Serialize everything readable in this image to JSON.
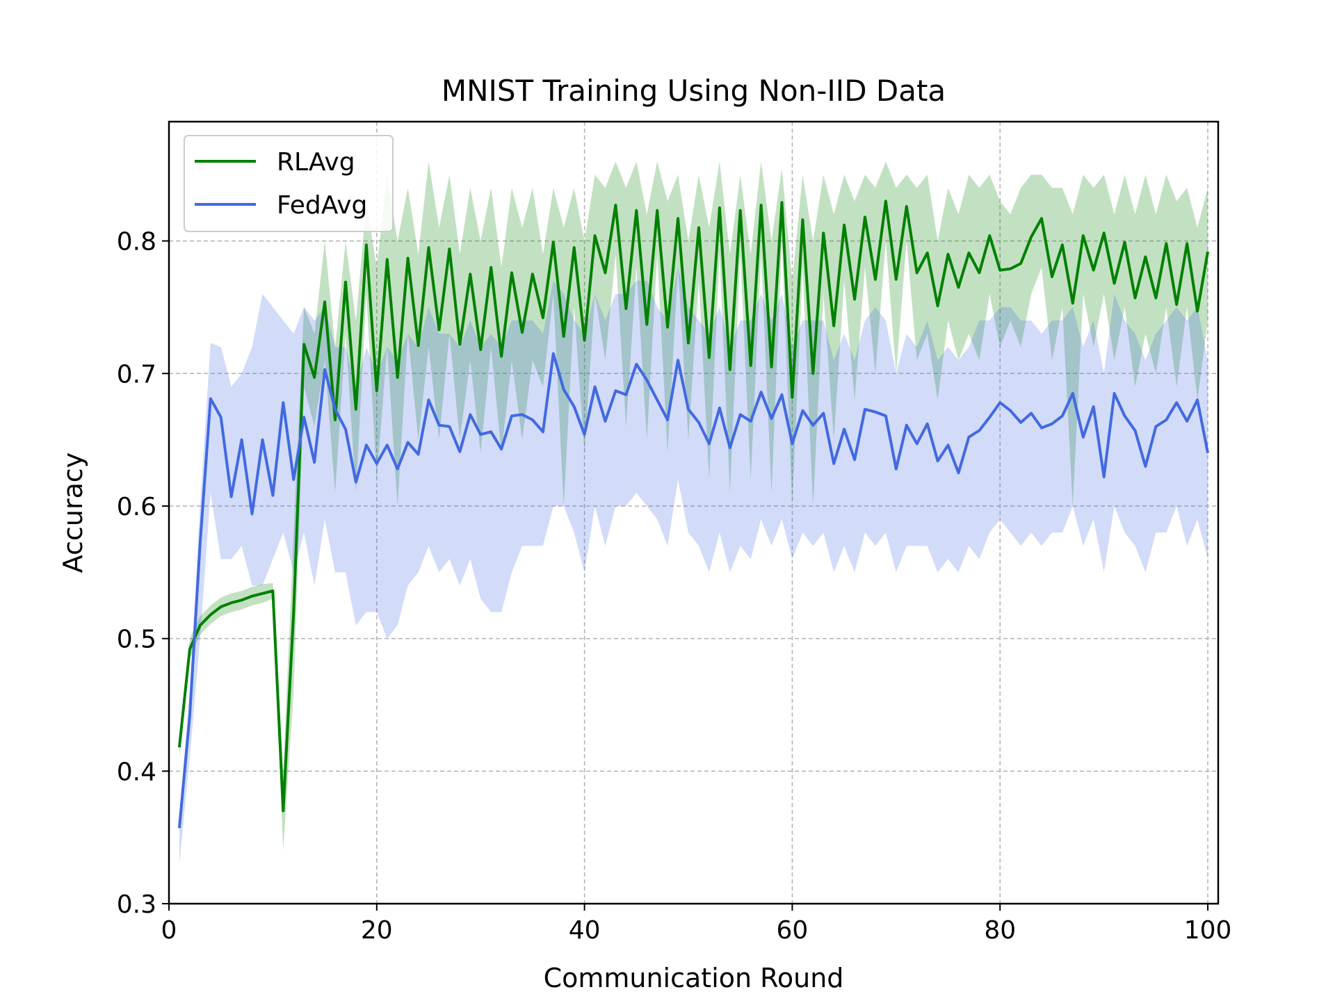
{
  "chart_data": {
    "type": "line",
    "title": "MNIST Training Using Non-IID Data",
    "xlabel": "Communication Round",
    "ylabel": "Accuracy",
    "xlim": [
      0,
      101
    ],
    "ylim": [
      0.3,
      0.89
    ],
    "xticks": [
      0,
      20,
      40,
      60,
      80,
      100
    ],
    "yticks": [
      0.3,
      0.4,
      0.5,
      0.6,
      0.7,
      0.8
    ],
    "xtick_labels": [
      "0",
      "20",
      "40",
      "60",
      "80",
      "100"
    ],
    "ytick_labels": [
      "0.3",
      "0.4",
      "0.5",
      "0.6",
      "0.7",
      "0.8"
    ],
    "grid": true,
    "legend_position": "top-left",
    "x": [
      1,
      2,
      3,
      4,
      5,
      6,
      7,
      8,
      9,
      10,
      11,
      12,
      13,
      14,
      15,
      16,
      17,
      18,
      19,
      20,
      21,
      22,
      23,
      24,
      25,
      26,
      27,
      28,
      29,
      30,
      31,
      32,
      33,
      34,
      35,
      36,
      37,
      38,
      39,
      40,
      41,
      42,
      43,
      44,
      45,
      46,
      47,
      48,
      49,
      50,
      51,
      52,
      53,
      54,
      55,
      56,
      57,
      58,
      59,
      60,
      61,
      62,
      63,
      64,
      65,
      66,
      67,
      68,
      69,
      70,
      71,
      72,
      73,
      74,
      75,
      76,
      77,
      78,
      79,
      80,
      81,
      82,
      83,
      84,
      85,
      86,
      87,
      88,
      89,
      90,
      91,
      92,
      93,
      94,
      95,
      96,
      97,
      98,
      99,
      100
    ],
    "series": [
      {
        "name": "RLAvg",
        "color": "#008000",
        "band_color": "rgba(0,128,0,0.24)",
        "values": [
          0.418,
          0.492,
          0.51,
          0.518,
          0.524,
          0.527,
          0.529,
          0.532,
          0.534,
          0.536,
          0.37,
          0.52,
          0.722,
          0.697,
          0.754,
          0.665,
          0.769,
          0.673,
          0.797,
          0.687,
          0.786,
          0.697,
          0.787,
          0.721,
          0.795,
          0.733,
          0.794,
          0.722,
          0.775,
          0.718,
          0.78,
          0.713,
          0.776,
          0.731,
          0.775,
          0.742,
          0.799,
          0.728,
          0.795,
          0.725,
          0.804,
          0.776,
          0.827,
          0.749,
          0.823,
          0.737,
          0.823,
          0.735,
          0.817,
          0.723,
          0.81,
          0.712,
          0.825,
          0.703,
          0.823,
          0.706,
          0.827,
          0.705,
          0.829,
          0.682,
          0.816,
          0.7,
          0.806,
          0.736,
          0.812,
          0.756,
          0.818,
          0.771,
          0.83,
          0.771,
          0.826,
          0.776,
          0.791,
          0.751,
          0.79,
          0.765,
          0.791,
          0.776,
          0.804,
          0.778,
          0.779,
          0.783,
          0.803,
          0.817,
          0.773,
          0.797,
          0.753,
          0.804,
          0.778,
          0.806,
          0.768,
          0.799,
          0.757,
          0.788,
          0.757,
          0.798,
          0.752,
          0.798,
          0.747,
          0.792
        ],
        "upper": [
          0.425,
          0.5,
          0.517,
          0.525,
          0.531,
          0.534,
          0.536,
          0.539,
          0.541,
          0.542,
          0.4,
          0.58,
          0.75,
          0.73,
          0.8,
          0.72,
          0.8,
          0.74,
          0.83,
          0.78,
          0.85,
          0.8,
          0.84,
          0.79,
          0.86,
          0.81,
          0.85,
          0.79,
          0.84,
          0.8,
          0.84,
          0.78,
          0.84,
          0.81,
          0.84,
          0.79,
          0.84,
          0.81,
          0.84,
          0.8,
          0.85,
          0.84,
          0.86,
          0.84,
          0.86,
          0.82,
          0.86,
          0.83,
          0.85,
          0.8,
          0.85,
          0.81,
          0.86,
          0.79,
          0.85,
          0.79,
          0.86,
          0.8,
          0.855,
          0.77,
          0.85,
          0.8,
          0.85,
          0.82,
          0.85,
          0.83,
          0.85,
          0.84,
          0.86,
          0.84,
          0.85,
          0.84,
          0.85,
          0.8,
          0.84,
          0.82,
          0.85,
          0.84,
          0.85,
          0.83,
          0.82,
          0.84,
          0.85,
          0.85,
          0.84,
          0.84,
          0.82,
          0.85,
          0.84,
          0.85,
          0.82,
          0.85,
          0.82,
          0.85,
          0.82,
          0.85,
          0.83,
          0.84,
          0.81,
          0.84
        ],
        "lower": [
          0.41,
          0.485,
          0.503,
          0.511,
          0.517,
          0.52,
          0.522,
          0.525,
          0.527,
          0.53,
          0.34,
          0.46,
          0.69,
          0.66,
          0.71,
          0.61,
          0.73,
          0.61,
          0.76,
          0.62,
          0.72,
          0.6,
          0.73,
          0.65,
          0.72,
          0.65,
          0.73,
          0.65,
          0.71,
          0.64,
          0.72,
          0.64,
          0.71,
          0.65,
          0.71,
          0.69,
          0.76,
          0.6,
          0.75,
          0.64,
          0.76,
          0.71,
          0.79,
          0.66,
          0.78,
          0.65,
          0.79,
          0.64,
          0.78,
          0.65,
          0.77,
          0.62,
          0.79,
          0.61,
          0.79,
          0.62,
          0.79,
          0.61,
          0.8,
          0.6,
          0.78,
          0.6,
          0.76,
          0.65,
          0.77,
          0.68,
          0.78,
          0.7,
          0.8,
          0.7,
          0.8,
          0.71,
          0.73,
          0.68,
          0.74,
          0.71,
          0.73,
          0.71,
          0.76,
          0.72,
          0.74,
          0.72,
          0.76,
          0.78,
          0.71,
          0.75,
          0.6,
          0.76,
          0.72,
          0.76,
          0.71,
          0.75,
          0.69,
          0.73,
          0.7,
          0.75,
          0.69,
          0.75,
          0.68,
          0.74
        ]
      },
      {
        "name": "FedAvg",
        "color": "#4169e1",
        "band_color": "rgba(65,105,225,0.24)",
        "values": [
          0.357,
          0.442,
          0.572,
          0.681,
          0.667,
          0.607,
          0.65,
          0.594,
          0.65,
          0.608,
          0.678,
          0.62,
          0.667,
          0.633,
          0.703,
          0.673,
          0.658,
          0.618,
          0.646,
          0.632,
          0.646,
          0.628,
          0.648,
          0.639,
          0.68,
          0.661,
          0.66,
          0.641,
          0.669,
          0.654,
          0.656,
          0.643,
          0.668,
          0.669,
          0.665,
          0.656,
          0.715,
          0.688,
          0.675,
          0.654,
          0.69,
          0.664,
          0.687,
          0.684,
          0.707,
          0.695,
          0.68,
          0.665,
          0.71,
          0.673,
          0.663,
          0.647,
          0.674,
          0.644,
          0.669,
          0.664,
          0.686,
          0.666,
          0.684,
          0.647,
          0.672,
          0.661,
          0.67,
          0.632,
          0.658,
          0.635,
          0.673,
          0.671,
          0.668,
          0.628,
          0.661,
          0.647,
          0.662,
          0.634,
          0.646,
          0.625,
          0.652,
          0.657,
          0.667,
          0.678,
          0.672,
          0.663,
          0.67,
          0.659,
          0.662,
          0.668,
          0.685,
          0.652,
          0.675,
          0.622,
          0.685,
          0.668,
          0.657,
          0.63,
          0.66,
          0.665,
          0.678,
          0.664,
          0.68,
          0.64
        ],
        "upper": [
          0.365,
          0.46,
          0.6,
          0.723,
          0.72,
          0.69,
          0.7,
          0.72,
          0.76,
          0.75,
          0.74,
          0.73,
          0.75,
          0.74,
          0.75,
          0.72,
          0.72,
          0.69,
          0.72,
          0.7,
          0.72,
          0.71,
          0.73,
          0.72,
          0.75,
          0.73,
          0.73,
          0.72,
          0.74,
          0.72,
          0.73,
          0.72,
          0.74,
          0.74,
          0.74,
          0.73,
          0.77,
          0.76,
          0.74,
          0.73,
          0.76,
          0.74,
          0.76,
          0.76,
          0.77,
          0.77,
          0.75,
          0.74,
          0.78,
          0.75,
          0.74,
          0.73,
          0.75,
          0.72,
          0.74,
          0.74,
          0.76,
          0.74,
          0.76,
          0.72,
          0.74,
          0.74,
          0.74,
          0.71,
          0.73,
          0.71,
          0.74,
          0.75,
          0.74,
          0.7,
          0.73,
          0.72,
          0.74,
          0.71,
          0.72,
          0.71,
          0.72,
          0.74,
          0.74,
          0.75,
          0.75,
          0.74,
          0.74,
          0.73,
          0.74,
          0.74,
          0.75,
          0.72,
          0.74,
          0.7,
          0.76,
          0.74,
          0.73,
          0.71,
          0.73,
          0.74,
          0.75,
          0.74,
          0.75,
          0.71
        ],
        "lower": [
          0.33,
          0.41,
          0.5,
          0.61,
          0.56,
          0.56,
          0.57,
          0.54,
          0.54,
          0.56,
          0.58,
          0.55,
          0.58,
          0.54,
          0.59,
          0.55,
          0.55,
          0.51,
          0.52,
          0.52,
          0.5,
          0.51,
          0.54,
          0.55,
          0.57,
          0.55,
          0.56,
          0.54,
          0.56,
          0.53,
          0.52,
          0.52,
          0.55,
          0.57,
          0.57,
          0.57,
          0.6,
          0.6,
          0.58,
          0.55,
          0.6,
          0.57,
          0.6,
          0.6,
          0.61,
          0.6,
          0.59,
          0.57,
          0.62,
          0.58,
          0.57,
          0.55,
          0.58,
          0.55,
          0.57,
          0.56,
          0.59,
          0.57,
          0.59,
          0.56,
          0.58,
          0.57,
          0.58,
          0.55,
          0.57,
          0.55,
          0.58,
          0.57,
          0.58,
          0.55,
          0.57,
          0.57,
          0.57,
          0.55,
          0.56,
          0.55,
          0.57,
          0.56,
          0.58,
          0.59,
          0.58,
          0.57,
          0.58,
          0.57,
          0.58,
          0.58,
          0.6,
          0.57,
          0.59,
          0.55,
          0.6,
          0.58,
          0.57,
          0.55,
          0.58,
          0.58,
          0.6,
          0.57,
          0.59,
          0.56
        ]
      }
    ]
  }
}
